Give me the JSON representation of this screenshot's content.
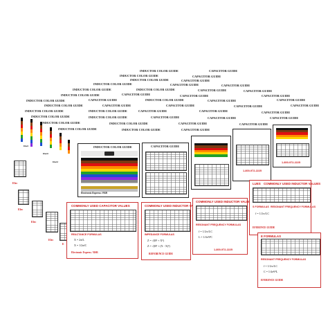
{
  "titles": {
    "inductor": "INDUCTOR COLOR GUIDE",
    "capacitor": "CAPACITOR GUIDE"
  },
  "tables": {
    "capacitor_values": "COMMONLY USED CAPACITOR VALUES",
    "inductor_values": "COMMONLY USED INDUCTOR VALUES",
    "inductor_values_short": "COMMONLY USED INDUCTOR VALUES",
    "partial_lues": "LUES"
  },
  "formulas": {
    "reactance": "REACTANCE FORMULAS",
    "impedance": "IMPEDANCE FORMULAS",
    "resonant": "RESONANT FREQUENCY FORMULAS",
    "resonant2": "RESONANT FREQUENCY FORMULAS",
    "resonant3": "RESONANT FREQUENCY FORMULAS",
    "e_formulas": "E FORMULAS",
    "s_formulas": "S FORMULAS"
  },
  "footer": {
    "brand": "Electronic Express / RSR",
    "ref_guide": "REFERENCE GUIDE",
    "ref_guide_b": "EFERENCE GUIDE",
    "ref_guide_c": "EFERENCE GUIDE",
    "phone": "1-800-972-2225",
    "elec": "Elec",
    "elect": "Elect",
    "electr": "Electr",
    "e_char": "E"
  }
}
